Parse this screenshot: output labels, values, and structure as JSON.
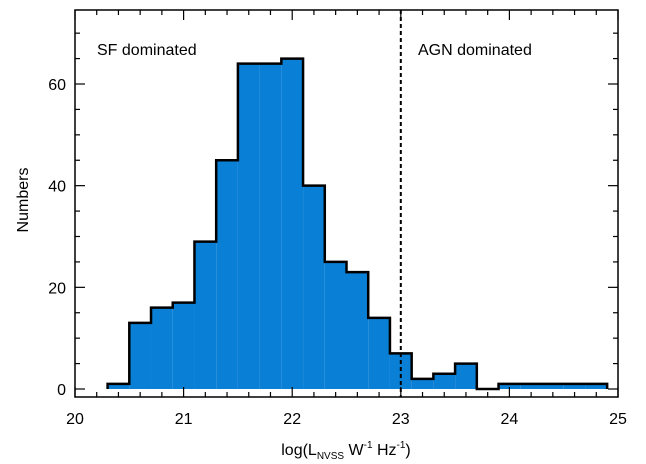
{
  "chart_data": {
    "type": "bar",
    "subtype": "histogram",
    "bin_edges": [
      20.3,
      20.5,
      20.7,
      20.9,
      21.1,
      21.3,
      21.5,
      21.7,
      21.9,
      22.1,
      22.3,
      22.5,
      22.7,
      22.9,
      23.1,
      23.3,
      23.5,
      23.7,
      23.9,
      24.1,
      24.3,
      24.5,
      24.7,
      24.9
    ],
    "values": [
      1,
      13,
      16,
      17,
      29,
      45,
      64,
      64,
      65,
      40,
      25,
      23,
      14,
      7,
      2,
      3,
      5,
      0,
      1,
      1,
      1,
      1,
      1
    ],
    "xlim": [
      20,
      25
    ],
    "ylim": [
      0,
      70
    ],
    "x_ticks": [
      20,
      21,
      22,
      23,
      24,
      25
    ],
    "y_ticks": [
      0,
      20,
      40,
      60
    ],
    "x_tick_labels": [
      "20",
      "21",
      "22",
      "23",
      "24",
      "25"
    ],
    "y_tick_labels": [
      "0",
      "20",
      "40",
      "60"
    ],
    "xlabel": {
      "pre": "log(L",
      "sub1": "NVSS",
      "mid1": " W",
      "sup1": "-1",
      "mid2": " Hz",
      "sup2": "-1",
      "post": ")"
    },
    "ylabel": "Numbers",
    "vline_x": 23,
    "annotations": {
      "left": "SF dominated",
      "right": "AGN dominated"
    },
    "fill_color": "#0a7fd6",
    "edge_color": "#000000"
  }
}
